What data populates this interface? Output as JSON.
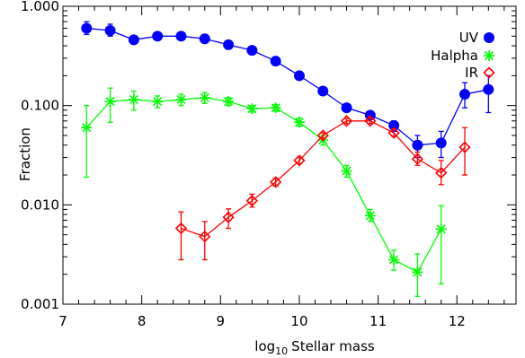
{
  "chart_data": {
    "type": "scatter",
    "xlabel": "Stellar mass",
    "xlabel_prefix": "log",
    "xlabel_sub": "10",
    "ylabel": "Fraction",
    "xlim": [
      7,
      12.75
    ],
    "ylim": [
      0.001,
      1.0
    ],
    "yscale": "log",
    "xticks": [
      7,
      8,
      9,
      10,
      11,
      12
    ],
    "xtick_labels": [
      "7",
      "8",
      "9",
      "10",
      "11",
      "12"
    ],
    "yticks": [
      0.001,
      0.01,
      0.1,
      1.0
    ],
    "ytick_labels": [
      "0.001",
      "0.010",
      "0.100",
      "1.000"
    ],
    "legend_position": "top-right",
    "grid": false,
    "series": [
      {
        "name": "UV",
        "color": "#0000ff",
        "marker": "filled-circle",
        "x": [
          7.3,
          7.6,
          7.9,
          8.2,
          8.5,
          8.8,
          9.1,
          9.4,
          9.7,
          10.0,
          10.3,
          10.6,
          10.9,
          11.2,
          11.5,
          11.8,
          12.1,
          12.4
        ],
        "y": [
          0.6,
          0.57,
          0.46,
          0.5,
          0.5,
          0.47,
          0.41,
          0.36,
          0.28,
          0.2,
          0.14,
          0.095,
          0.08,
          0.063,
          0.04,
          0.042,
          0.13,
          0.145
        ],
        "y_err_low": [
          0.52,
          0.5,
          0.43,
          0.47,
          0.47,
          0.45,
          0.39,
          0.34,
          0.26,
          0.19,
          0.13,
          0.09,
          0.075,
          0.055,
          0.03,
          0.03,
          0.095,
          0.085
        ],
        "y_err_high": [
          0.7,
          0.66,
          0.5,
          0.53,
          0.53,
          0.5,
          0.44,
          0.38,
          0.3,
          0.22,
          0.15,
          0.1,
          0.085,
          0.07,
          0.05,
          0.055,
          0.17,
          0.2
        ]
      },
      {
        "name": "Halpha",
        "color": "#00ff00",
        "marker": "asterisk",
        "x": [
          7.3,
          7.6,
          7.9,
          8.2,
          8.5,
          8.8,
          9.1,
          9.4,
          9.7,
          10.0,
          10.3,
          10.6,
          10.9,
          11.2,
          11.5,
          11.8
        ],
        "y": [
          0.06,
          0.11,
          0.115,
          0.11,
          0.115,
          0.12,
          0.11,
          0.093,
          0.095,
          0.068,
          0.045,
          0.022,
          0.0078,
          0.0028,
          0.0021,
          0.0057
        ],
        "y_err_low": [
          0.019,
          0.068,
          0.09,
          0.095,
          0.1,
          0.105,
          0.1,
          0.086,
          0.088,
          0.062,
          0.04,
          0.019,
          0.0068,
          0.0022,
          0.0012,
          0.0016
        ],
        "y_err_high": [
          0.1,
          0.15,
          0.14,
          0.125,
          0.13,
          0.135,
          0.12,
          0.1,
          0.102,
          0.075,
          0.05,
          0.025,
          0.009,
          0.0035,
          0.0032,
          0.0098
        ]
      },
      {
        "name": "IR",
        "color": "#ff0000",
        "marker": "open-diamond",
        "x": [
          8.5,
          8.8,
          9.1,
          9.4,
          9.7,
          10.0,
          10.3,
          10.6,
          10.9,
          11.2,
          11.5,
          11.8,
          12.1
        ],
        "y": [
          0.0058,
          0.0048,
          0.0075,
          0.011,
          0.017,
          0.028,
          0.05,
          0.07,
          0.07,
          0.053,
          0.029,
          0.021,
          0.038
        ],
        "y_err_low": [
          0.0028,
          0.0028,
          0.0058,
          0.0095,
          0.0155,
          0.026,
          0.047,
          0.066,
          0.066,
          0.049,
          0.025,
          0.016,
          0.02
        ],
        "y_err_high": [
          0.0085,
          0.0068,
          0.0091,
          0.0128,
          0.0185,
          0.03,
          0.053,
          0.074,
          0.074,
          0.058,
          0.034,
          0.028,
          0.06
        ]
      }
    ]
  }
}
